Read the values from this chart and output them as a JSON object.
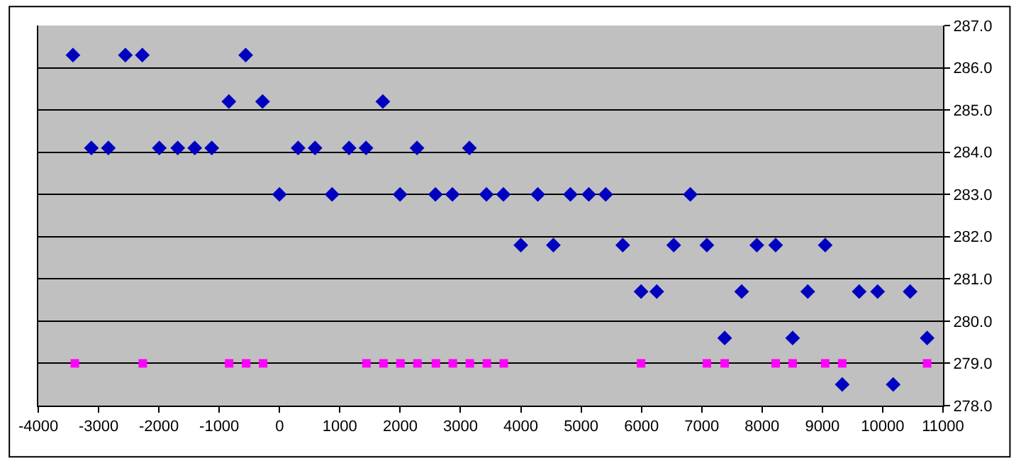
{
  "chart_data": {
    "type": "scatter",
    "xlim": [
      -4000,
      11000
    ],
    "xticks": [
      -4000,
      -3000,
      -2000,
      -1000,
      0,
      1000,
      2000,
      3000,
      4000,
      5000,
      6000,
      7000,
      8000,
      9000,
      10000,
      11000
    ],
    "ylim": [
      278,
      287
    ],
    "yticks": [
      {
        "value": 278,
        "label": "278.0"
      },
      {
        "value": 279,
        "label": "279.0"
      },
      {
        "value": 280,
        "label": "280.0"
      },
      {
        "value": 281,
        "label": "281.0"
      },
      {
        "value": 282,
        "label": "282.0"
      },
      {
        "value": 283,
        "label": "283.0"
      },
      {
        "value": 284,
        "label": "284.0"
      },
      {
        "value": 285,
        "label": "285.0"
      },
      {
        "value": 286,
        "label": "286.0"
      },
      {
        "value": 287,
        "label": "287.0"
      }
    ],
    "grid": "y",
    "series": [
      {
        "color": "#0000c0",
        "marker": "diamond",
        "x": [
          -3425,
          -3120,
          -2838,
          -2556,
          -2275,
          -1993,
          -1688,
          -1406,
          -1124,
          -840,
          -561,
          -282,
          -2,
          308,
          589,
          871,
          1153,
          1434,
          1713,
          1998,
          2279,
          2585,
          2866,
          3148,
          3430,
          3711,
          4000,
          4282,
          4540,
          4822,
          5127,
          5408,
          5690,
          5994,
          6254,
          6535,
          6810,
          7085,
          7380,
          7662,
          7913,
          8225,
          8507,
          8758,
          9047,
          9329,
          9610,
          9916,
          10174,
          10455,
          10737
        ],
        "values": [
          286.3,
          284.1,
          284.1,
          286.3,
          286.3,
          284.1,
          284.1,
          284.1,
          284.1,
          285.2,
          286.3,
          285.2,
          283.0,
          284.1,
          284.1,
          283.0,
          284.1,
          284.1,
          285.2,
          283.0,
          284.1,
          283.0,
          283.0,
          284.1,
          283.0,
          283.0,
          281.8,
          283.0,
          281.8,
          283.0,
          283.0,
          283.0,
          281.8,
          280.7,
          280.7,
          281.8,
          283.0,
          281.8,
          279.6,
          280.7,
          281.8,
          281.8,
          279.6,
          280.7,
          281.8,
          278.5,
          280.7,
          280.7,
          278.5,
          280.7,
          279.6
        ]
      },
      {
        "color": "#ff00ff",
        "marker": "square",
        "x": [
          -3394,
          -2268,
          -836,
          -554,
          -272,
          1441,
          1723,
          2005,
          2286,
          2592,
          2873,
          3155,
          3437,
          3718,
          5994,
          7085,
          7380,
          8225,
          8507,
          9047,
          9329,
          10737
        ],
        "values": [
          279,
          279,
          279,
          279,
          279,
          279,
          279,
          279,
          279,
          279,
          279,
          279,
          279,
          279,
          279,
          279,
          279,
          279,
          279,
          279,
          279,
          279
        ]
      }
    ]
  }
}
